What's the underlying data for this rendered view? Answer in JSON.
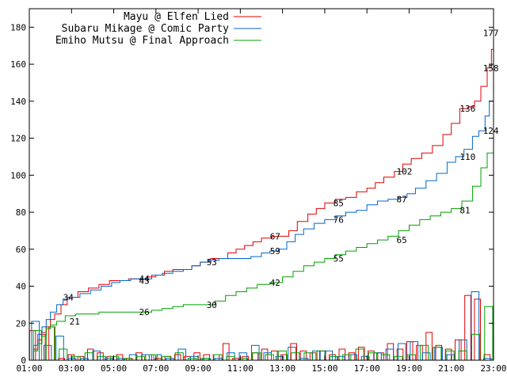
{
  "chart_data": {
    "type": "line",
    "x_ticks": [
      "01:00",
      "03:00",
      "05:00",
      "07:00",
      "09:00",
      "11:00",
      "13:00",
      "15:00",
      "17:00",
      "19:00",
      "21:00",
      "23:00"
    ],
    "y_ticks": [
      "0",
      "20",
      "40",
      "60",
      "80",
      "100",
      "120",
      "140",
      "160",
      "180"
    ],
    "xlim": [
      1.0,
      23.0
    ],
    "ylim": [
      0,
      190
    ],
    "grid": false,
    "legend_position": "top-right",
    "series": [
      {
        "name": "Mayu @ Elfen Lied",
        "color": "#e00000",
        "points": [
          [
            1.0,
            0
          ],
          [
            1.2,
            6
          ],
          [
            1.4,
            11
          ],
          [
            1.6,
            15
          ],
          [
            1.8,
            18
          ],
          [
            2.0,
            22
          ],
          [
            2.2,
            25
          ],
          [
            2.5,
            30
          ],
          [
            2.8,
            34
          ],
          [
            3.3,
            37
          ],
          [
            3.8,
            39
          ],
          [
            4.3,
            41
          ],
          [
            4.8,
            43
          ],
          [
            5.3,
            43
          ],
          [
            5.7,
            44
          ],
          [
            6.2,
            44
          ],
          [
            6.6,
            45
          ],
          [
            7.0,
            46
          ],
          [
            7.4,
            48
          ],
          [
            7.8,
            49
          ],
          [
            8.3,
            49
          ],
          [
            8.7,
            51
          ],
          [
            9.1,
            53
          ],
          [
            9.6,
            55
          ],
          [
            10.0,
            55
          ],
          [
            10.4,
            58
          ],
          [
            10.8,
            60
          ],
          [
            11.2,
            62
          ],
          [
            11.6,
            64
          ],
          [
            12.0,
            66
          ],
          [
            12.5,
            67
          ],
          [
            13.0,
            67
          ],
          [
            13.3,
            70
          ],
          [
            13.7,
            75
          ],
          [
            14.2,
            79
          ],
          [
            14.6,
            82
          ],
          [
            15.0,
            85
          ],
          [
            15.5,
            87
          ],
          [
            16.0,
            88
          ],
          [
            16.5,
            91
          ],
          [
            17.0,
            93
          ],
          [
            17.4,
            96
          ],
          [
            17.8,
            99
          ],
          [
            18.3,
            102
          ],
          [
            18.7,
            106
          ],
          [
            19.1,
            109
          ],
          [
            19.6,
            112
          ],
          [
            20.1,
            116
          ],
          [
            20.6,
            122
          ],
          [
            21.0,
            128
          ],
          [
            21.4,
            136
          ],
          [
            21.8,
            137
          ],
          [
            22.1,
            140
          ],
          [
            22.4,
            148
          ],
          [
            22.7,
            158
          ],
          [
            22.9,
            168
          ],
          [
            23.0,
            177
          ]
        ],
        "hist": [
          16,
          14,
          18,
          1,
          3,
          2,
          6,
          4,
          2,
          3,
          1,
          4,
          3,
          1,
          2,
          3,
          2,
          4,
          3,
          3,
          9,
          1,
          2,
          4,
          6,
          5,
          3,
          9,
          5,
          4,
          5,
          3,
          6,
          4,
          7,
          5,
          4,
          9,
          6,
          10,
          8,
          15,
          8,
          6,
          11,
          35,
          33,
          3
        ]
      },
      {
        "name": "Subaru Mikage @ Comic Party",
        "color": "#0066cc",
        "points": [
          [
            1.0,
            0
          ],
          [
            1.2,
            8
          ],
          [
            1.4,
            14
          ],
          [
            1.6,
            18
          ],
          [
            1.8,
            22
          ],
          [
            2.0,
            26
          ],
          [
            2.3,
            30
          ],
          [
            2.6,
            33
          ],
          [
            2.9,
            34
          ],
          [
            3.4,
            36
          ],
          [
            3.9,
            38
          ],
          [
            4.4,
            40
          ],
          [
            4.9,
            42
          ],
          [
            5.3,
            43
          ],
          [
            5.8,
            44
          ],
          [
            6.3,
            44
          ],
          [
            6.8,
            46
          ],
          [
            7.3,
            47
          ],
          [
            7.8,
            48
          ],
          [
            8.3,
            49
          ],
          [
            8.7,
            51
          ],
          [
            9.1,
            53
          ],
          [
            9.5,
            54
          ],
          [
            10.0,
            55
          ],
          [
            10.5,
            55
          ],
          [
            11.0,
            55
          ],
          [
            11.5,
            56
          ],
          [
            12.0,
            58
          ],
          [
            12.4,
            59
          ],
          [
            12.8,
            60
          ],
          [
            13.2,
            64
          ],
          [
            13.6,
            68
          ],
          [
            14.0,
            71
          ],
          [
            14.5,
            74
          ],
          [
            15.0,
            76
          ],
          [
            15.5,
            78
          ],
          [
            16.0,
            80
          ],
          [
            16.5,
            81
          ],
          [
            17.0,
            84
          ],
          [
            17.5,
            86
          ],
          [
            18.0,
            87
          ],
          [
            18.5,
            88
          ],
          [
            18.9,
            90
          ],
          [
            19.3,
            93
          ],
          [
            19.8,
            97
          ],
          [
            20.3,
            101
          ],
          [
            20.8,
            107
          ],
          [
            21.2,
            110
          ],
          [
            21.6,
            114
          ],
          [
            22.0,
            121
          ],
          [
            22.3,
            124
          ],
          [
            22.6,
            132
          ],
          [
            22.8,
            140
          ],
          [
            23.0,
            158
          ]
        ],
        "hist": [
          21,
          8,
          13,
          1,
          1,
          5,
          1,
          1,
          3,
          3,
          3,
          1,
          6,
          2,
          1,
          1,
          4,
          4,
          8,
          4,
          2,
          7,
          1,
          5,
          5,
          2,
          3,
          2,
          4,
          6,
          9,
          10,
          4,
          7,
          3,
          11,
          37,
          1
        ]
      },
      {
        "name": "Emiho Mutsu @ Final Approach",
        "color": "#00a000",
        "points": [
          [
            1.0,
            0
          ],
          [
            1.2,
            5
          ],
          [
            1.4,
            9
          ],
          [
            1.6,
            13
          ],
          [
            1.8,
            17
          ],
          [
            2.0,
            19
          ],
          [
            2.3,
            21
          ],
          [
            2.7,
            24
          ],
          [
            3.2,
            25
          ],
          [
            3.8,
            25
          ],
          [
            4.3,
            26
          ],
          [
            4.8,
            26
          ],
          [
            5.3,
            26
          ],
          [
            5.8,
            26
          ],
          [
            6.3,
            26
          ],
          [
            6.8,
            27
          ],
          [
            7.3,
            28
          ],
          [
            7.8,
            29
          ],
          [
            8.3,
            30
          ],
          [
            8.8,
            30
          ],
          [
            9.3,
            30
          ],
          [
            9.8,
            32
          ],
          [
            10.3,
            35
          ],
          [
            10.8,
            37
          ],
          [
            11.3,
            39
          ],
          [
            11.8,
            41
          ],
          [
            12.4,
            42
          ],
          [
            13.0,
            45
          ],
          [
            13.5,
            48
          ],
          [
            14.0,
            51
          ],
          [
            14.5,
            53
          ],
          [
            15.0,
            55
          ],
          [
            15.5,
            57
          ],
          [
            16.0,
            59
          ],
          [
            16.5,
            61
          ],
          [
            17.0,
            63
          ],
          [
            17.5,
            65
          ],
          [
            18.0,
            67
          ],
          [
            18.5,
            70
          ],
          [
            19.0,
            73
          ],
          [
            19.5,
            76
          ],
          [
            20.0,
            78
          ],
          [
            20.5,
            80
          ],
          [
            21.0,
            82
          ],
          [
            21.5,
            86
          ],
          [
            22.0,
            94
          ],
          [
            22.4,
            104
          ],
          [
            22.7,
            112
          ],
          [
            23.0,
            124
          ]
        ],
        "hist": [
          16,
          18,
          6,
          2,
          4,
          2,
          2,
          1,
          2,
          3,
          2,
          4,
          1,
          1,
          3,
          2,
          1,
          4,
          3,
          5,
          4,
          4,
          5,
          2,
          3,
          6,
          4,
          3,
          2,
          3,
          8,
          7,
          5,
          5,
          14,
          29
        ]
      }
    ],
    "data_labels": [
      {
        "x": 2.6,
        "y": 34,
        "text": "34"
      },
      {
        "x": 2.9,
        "y": 21,
        "text": "21"
      },
      {
        "x": 6.2,
        "y": 44,
        "text": "44"
      },
      {
        "x": 6.2,
        "y": 43,
        "text": "43"
      },
      {
        "x": 6.2,
        "y": 26,
        "text": "26"
      },
      {
        "x": 9.4,
        "y": 53,
        "text": "53"
      },
      {
        "x": 9.4,
        "y": 30,
        "text": "30"
      },
      {
        "x": 12.4,
        "y": 67,
        "text": "67"
      },
      {
        "x": 12.4,
        "y": 59,
        "text": "59"
      },
      {
        "x": 12.4,
        "y": 42,
        "text": "42"
      },
      {
        "x": 15.4,
        "y": 85,
        "text": "85"
      },
      {
        "x": 15.4,
        "y": 76,
        "text": "76"
      },
      {
        "x": 15.4,
        "y": 55,
        "text": "55"
      },
      {
        "x": 18.4,
        "y": 102,
        "text": "102"
      },
      {
        "x": 18.4,
        "y": 87,
        "text": "87"
      },
      {
        "x": 18.4,
        "y": 65,
        "text": "65"
      },
      {
        "x": 21.4,
        "y": 136,
        "text": "136"
      },
      {
        "x": 21.4,
        "y": 110,
        "text": "110"
      },
      {
        "x": 21.4,
        "y": 81,
        "text": "81"
      },
      {
        "x": 22.5,
        "y": 177,
        "text": "177"
      },
      {
        "x": 22.5,
        "y": 158,
        "text": "158"
      },
      {
        "x": 22.5,
        "y": 124,
        "text": "124"
      }
    ]
  }
}
